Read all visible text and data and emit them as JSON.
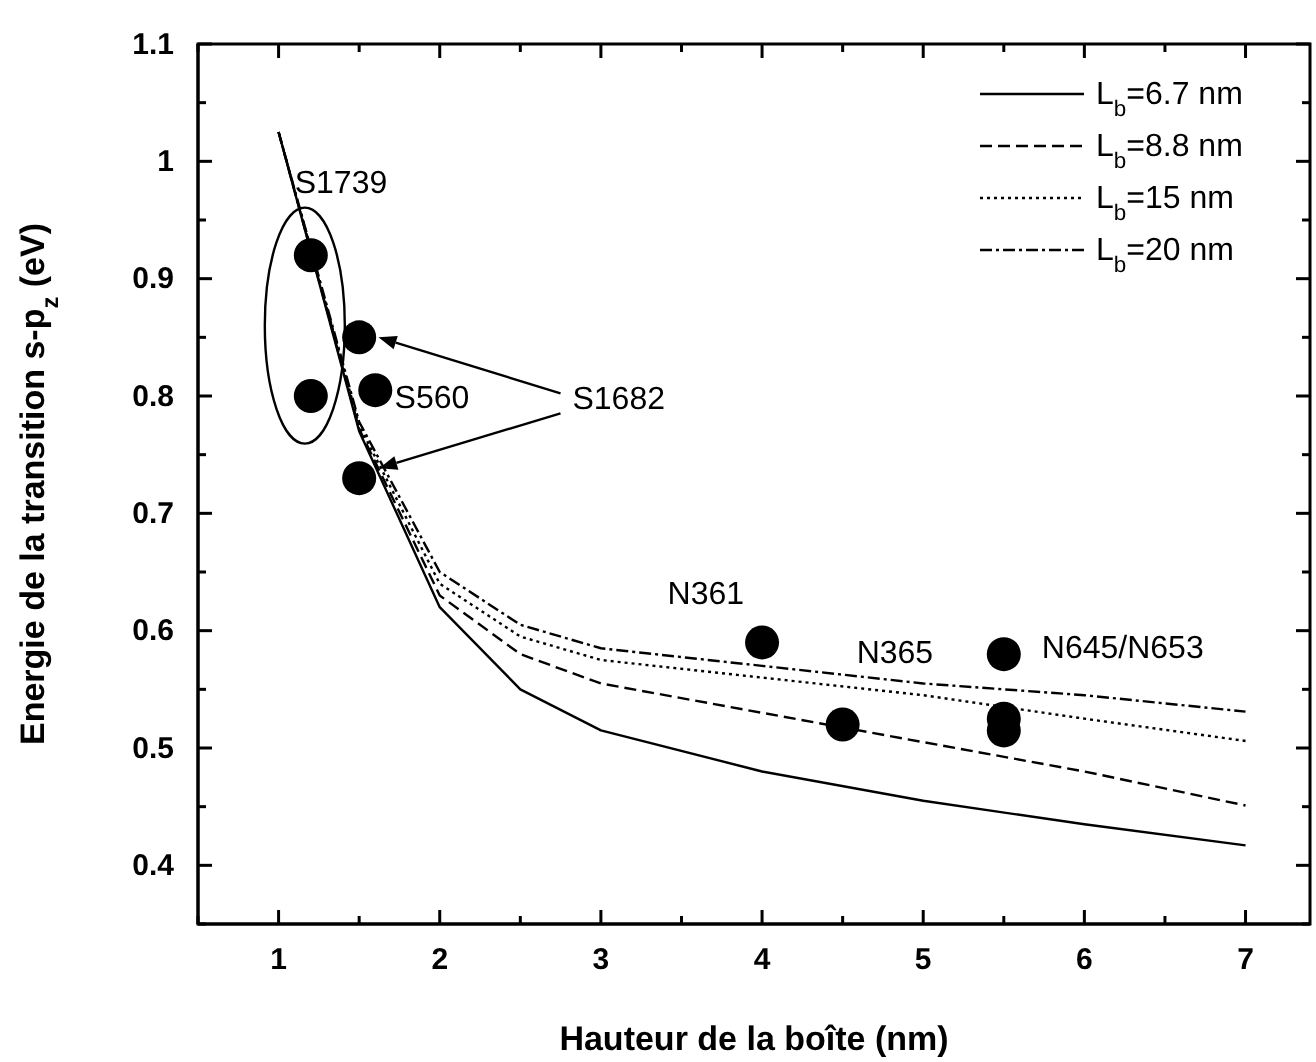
{
  "chart_data": {
    "type": "line",
    "xlabel": "Hauteur de la boîte (nm)",
    "ylabel": "Energie de la transition s-p$_{z}$ (eV)",
    "xlim": [
      0.5,
      7.4
    ],
    "ylim": [
      0.35,
      1.1
    ],
    "xticks": [
      1,
      2,
      3,
      4,
      5,
      6,
      7
    ],
    "yticks": [
      0.4,
      0.5,
      0.6,
      0.7,
      0.8,
      0.9,
      1.0,
      1.1
    ],
    "grid": false,
    "legend": "top right",
    "marker": "none",
    "series": [
      {
        "name": "L$_{b}$=6.7 nm",
        "color": "#000000",
        "line_style": "solid",
        "x": [
          1,
          1.5,
          2,
          2.5,
          3,
          4,
          5,
          6,
          7
        ],
        "values": [
          1.025,
          0.77,
          0.62,
          0.55,
          0.515,
          0.48,
          0.455,
          0.435,
          0.417
        ]
      },
      {
        "name": "L$_{b}$=8.8 nm",
        "color": "#000000",
        "line_style": "dashed",
        "x": [
          1,
          1.5,
          2,
          2.5,
          3,
          4,
          5,
          6,
          7
        ],
        "values": [
          1.025,
          0.772,
          0.63,
          0.58,
          0.555,
          0.53,
          0.505,
          0.48,
          0.451
        ]
      },
      {
        "name": "L$_{b}$=15 nm",
        "color": "#000000",
        "line_style": "dotted",
        "x": [
          1,
          1.5,
          2,
          2.5,
          3,
          4,
          5,
          6,
          7
        ],
        "values": [
          1.025,
          0.775,
          0.64,
          0.595,
          0.575,
          0.56,
          0.545,
          0.525,
          0.506
        ]
      },
      {
        "name": "L$_{b}$=20 nm",
        "color": "#000000",
        "line_style": "dashdot",
        "x": [
          1,
          1.5,
          2,
          2.5,
          3,
          4,
          5,
          6,
          7
        ],
        "values": [
          1.025,
          0.778,
          0.65,
          0.605,
          0.585,
          0.57,
          0.555,
          0.545,
          0.531
        ]
      },
      {
        "type": "scatter",
        "marker": "circle",
        "color": "#000000",
        "x": [
          1.2,
          1.2,
          1.5,
          1.6,
          1.5,
          4,
          4.5,
          5.5,
          5.5,
          5.5
        ],
        "values": [
          0.92,
          0.8,
          0.85,
          0.805,
          0.73,
          0.59,
          0.52,
          0.58,
          0.525,
          0.515
        ]
      }
    ],
    "annotations": [
      {
        "text": "S1739",
        "x": 1.1,
        "y": 0.98
      },
      {
        "text": "S560",
        "x": 1.72,
        "y": 0.797
      },
      {
        "text": "S1682",
        "x": 1.62,
        "y": 0.85
      },
      {
        "text": "N361",
        "x": 4,
        "y": 0.59
      },
      {
        "text": "N365",
        "x": 4.5,
        "y": 0.52
      },
      {
        "text": "N645/N653",
        "x": 5.5,
        "y": 0.58
      }
    ]
  }
}
